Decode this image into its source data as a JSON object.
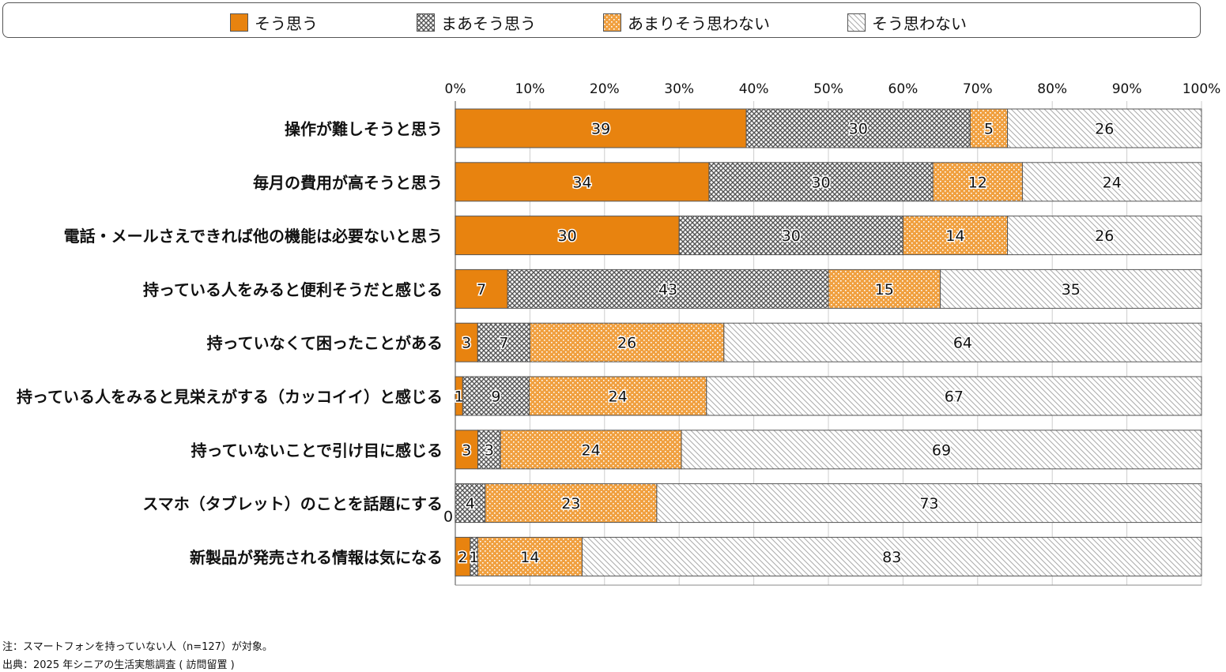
{
  "chart_data": {
    "type": "bar",
    "orientation": "horizontal-stacked-100",
    "categories": [
      "操作が難しそうと思う",
      "毎月の費用が高そうと思う",
      "電話・メールさえできれば他の機能は必要ないと思う",
      "持っている人をみると便利そうだと感じる",
      "持っていなくて困ったことがある",
      "持っている人をみると見栄えがする（カッコイイ）と感じる",
      "持っていないことで引け目に感じる",
      "スマホ（タブレット）のことを話題にする",
      "新製品が発売される情報は気になる"
    ],
    "series": [
      {
        "name": "そう思う",
        "color": "#e8830f",
        "pattern": "solid",
        "values": [
          39,
          34,
          30,
          7,
          3,
          1,
          3,
          0,
          2
        ]
      },
      {
        "name": "まあそう思う",
        "color": "#555555",
        "pattern": "crosshatch",
        "values": [
          30,
          30,
          30,
          43,
          7,
          9,
          3,
          4,
          1
        ]
      },
      {
        "name": "あまりそう思わない",
        "color": "#f0a040",
        "pattern": "dots",
        "values": [
          5,
          12,
          14,
          15,
          26,
          24,
          24,
          23,
          14
        ]
      },
      {
        "name": "そう思わない",
        "color": "#999999",
        "pattern": "diagonal",
        "values": [
          26,
          24,
          26,
          35,
          64,
          67,
          69,
          73,
          83
        ]
      }
    ],
    "xlim": [
      0,
      100
    ],
    "xticks": [
      "0%",
      "10%",
      "20%",
      "30%",
      "40%",
      "50%",
      "60%",
      "70%",
      "80%",
      "90%",
      "100%"
    ],
    "legend": "top",
    "grid": true
  },
  "notes": {
    "note": "注：スマートフォンを持っていない人（n=127）が対象。",
    "source": "出典：2025 年シニアの生活実態調査 ( 訪問留置 )"
  }
}
